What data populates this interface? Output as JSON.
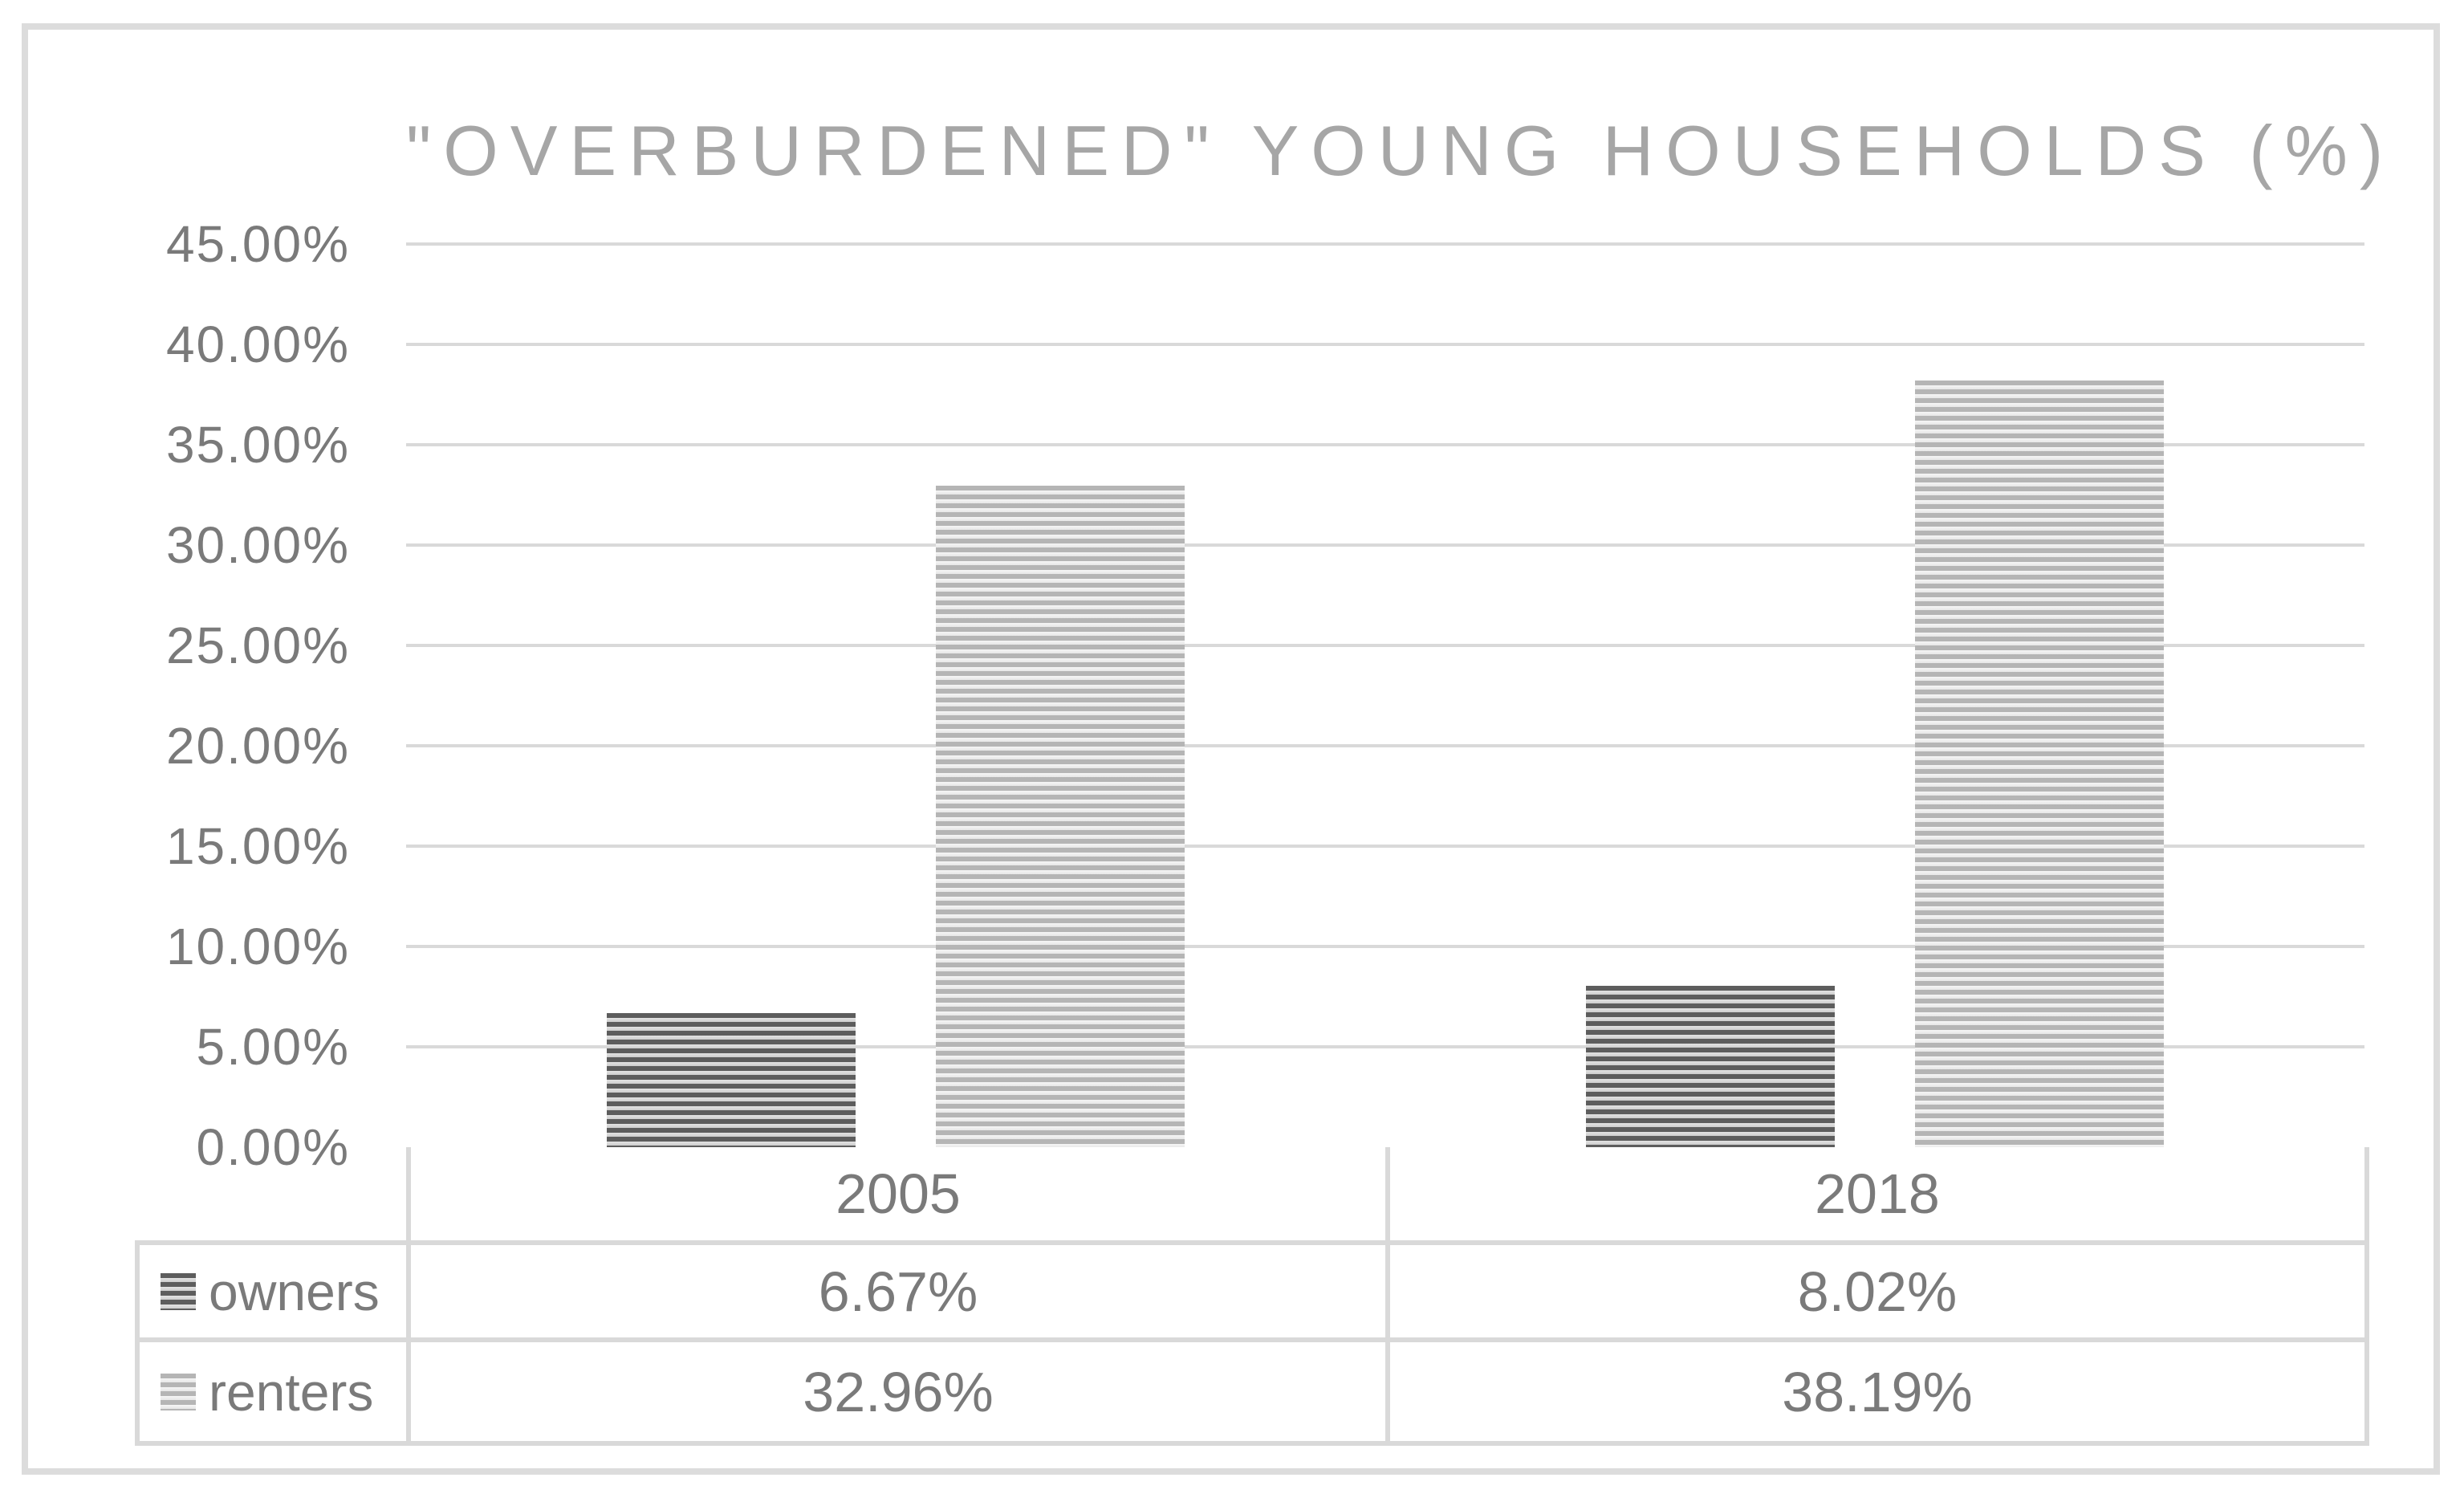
{
  "window": {
    "background": "#ffffff",
    "frame_border_color": "#dcdcdc"
  },
  "chart_data": {
    "type": "bar",
    "title": "\"OVERBURDENED\" YOUNG HOUSEHOLDS (%)",
    "title_color": "#a6a6a6",
    "categories": [
      "2005",
      "2018"
    ],
    "series": [
      {
        "name": "owners",
        "values": [
          6.67,
          8.02
        ],
        "value_labels": [
          "6.67%",
          "8.02%"
        ],
        "swatch": "dark-horizontal-stripes",
        "stripe_color": "#5d5d5d",
        "stripe_gap_color": "#d8d8d8"
      },
      {
        "name": "renters",
        "values": [
          32.96,
          38.19
        ],
        "value_labels": [
          "32.96%",
          "38.19%"
        ],
        "swatch": "light-horizontal-stripes",
        "stripe_color": "#b5b5b5",
        "stripe_gap_color": "#f2f2f2"
      }
    ],
    "xlabel": "",
    "ylabel": "",
    "ylim": [
      0,
      45
    ],
    "y_tick_step": 5,
    "y_tick_labels": [
      "45.00%",
      "40.00%",
      "35.00%",
      "30.00%",
      "25.00%",
      "20.00%",
      "15.00%",
      "10.00%",
      "5.00%",
      "0.00%"
    ],
    "grid": true,
    "gridline_color": "#d9d9d9",
    "legend_position": "data-table-left",
    "text_color": "#7a7a7a",
    "has_data_table": true
  }
}
